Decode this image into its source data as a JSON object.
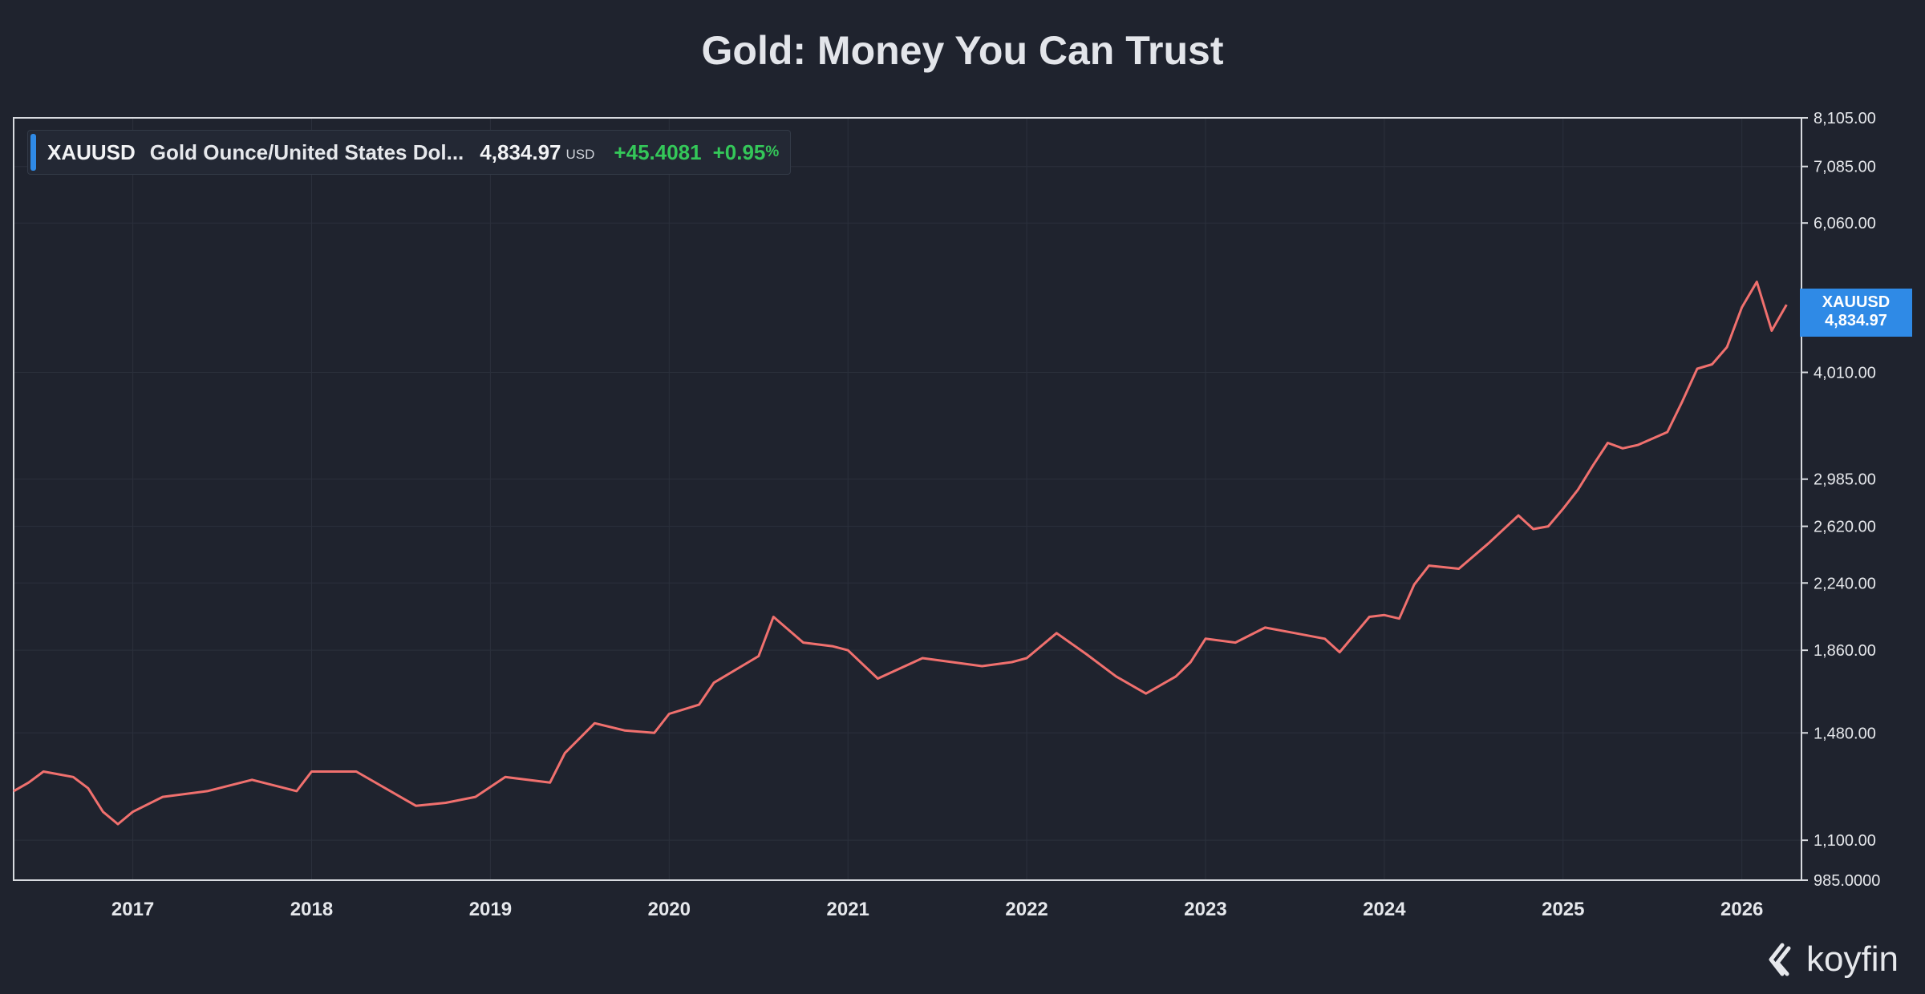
{
  "title": "Gold: Money You Can Trust",
  "legend": {
    "symbol": "XAUUSD",
    "description": "Gold Ounce/United States Dol...",
    "last": "4,834.97",
    "currency": "USD",
    "change": "+45.4081",
    "change_pct": "+0.95",
    "pct_sign": "%"
  },
  "price_tag": {
    "symbol": "XAUUSD",
    "value": "4,834.97"
  },
  "logo": {
    "text": "koyfin",
    "icon": "koyfin-logo-icon"
  },
  "colors": {
    "background": "#1f232e",
    "line": "#f0706e",
    "accent": "#2f8ae6",
    "positive": "#34c759"
  },
  "chart_data": {
    "type": "line",
    "title": "Gold: Money You Can Trust",
    "series": [
      {
        "name": "XAUUSD",
        "x": [
          "2016-05",
          "2016-06",
          "2016-07",
          "2016-08",
          "2016-09",
          "2016-10",
          "2016-11",
          "2016-12",
          "2017-01",
          "2017-03",
          "2017-06",
          "2017-09",
          "2017-12",
          "2018-01",
          "2018-04",
          "2018-08",
          "2018-10",
          "2018-12",
          "2019-02",
          "2019-05",
          "2019-06",
          "2019-08",
          "2019-10",
          "2019-12",
          "2020-01",
          "2020-03",
          "2020-04",
          "2020-07",
          "2020-08",
          "2020-10",
          "2020-12",
          "2021-01",
          "2021-03",
          "2021-06",
          "2021-08",
          "2021-10",
          "2021-12",
          "2022-01",
          "2022-03",
          "2022-05",
          "2022-07",
          "2022-09",
          "2022-11",
          "2022-12",
          "2023-01",
          "2023-03",
          "2023-05",
          "2023-07",
          "2023-09",
          "2023-10",
          "2023-12",
          "2024-01",
          "2024-02",
          "2024-03",
          "2024-04",
          "2024-06",
          "2024-08",
          "2024-10",
          "2024-11",
          "2024-12",
          "2025-01",
          "2025-02",
          "2025-03",
          "2025-04",
          "2025-05",
          "2025-06",
          "2025-08",
          "2025-09",
          "2025-10",
          "2025-11",
          "2025-12",
          "2026-01",
          "2026-02",
          "2026-03",
          "2026-04"
        ],
        "values": [
          1260,
          1290,
          1330,
          1320,
          1310,
          1270,
          1190,
          1150,
          1190,
          1240,
          1260,
          1300,
          1260,
          1330,
          1330,
          1210,
          1220,
          1240,
          1310,
          1290,
          1400,
          1520,
          1490,
          1480,
          1560,
          1600,
          1700,
          1830,
          2040,
          1900,
          1880,
          1860,
          1720,
          1820,
          1800,
          1780,
          1800,
          1820,
          1950,
          1840,
          1730,
          1650,
          1730,
          1800,
          1920,
          1900,
          1980,
          1950,
          1920,
          1850,
          2040,
          2050,
          2030,
          2230,
          2350,
          2330,
          2500,
          2700,
          2600,
          2620,
          2750,
          2900,
          3100,
          3300,
          3250,
          3280,
          3400,
          3700,
          4050,
          4100,
          4300,
          4800,
          5150,
          4500,
          4834.97
        ]
      }
    ],
    "xlabel": "",
    "ylabel": "",
    "x_ticks": [
      "2017",
      "2018",
      "2019",
      "2020",
      "2021",
      "2022",
      "2023",
      "2024",
      "2025",
      "2026"
    ],
    "y_ticks": [
      "8,105.00",
      "7,085.00",
      "6,060.00",
      "4,010.00",
      "2,985.00",
      "2,620.00",
      "2,240.00",
      "1,860.00",
      "1,480.00",
      "1,100.00",
      "985.0000"
    ],
    "y_tick_values": [
      8105,
      7085,
      6060,
      4010,
      2985,
      2620,
      2240,
      1860,
      1480,
      1100,
      985
    ],
    "ylim": [
      985,
      8105
    ],
    "y_scale": "log",
    "xlim": [
      "2016-05",
      "2026-05"
    ],
    "grid": true,
    "legend_position": "top-left"
  }
}
